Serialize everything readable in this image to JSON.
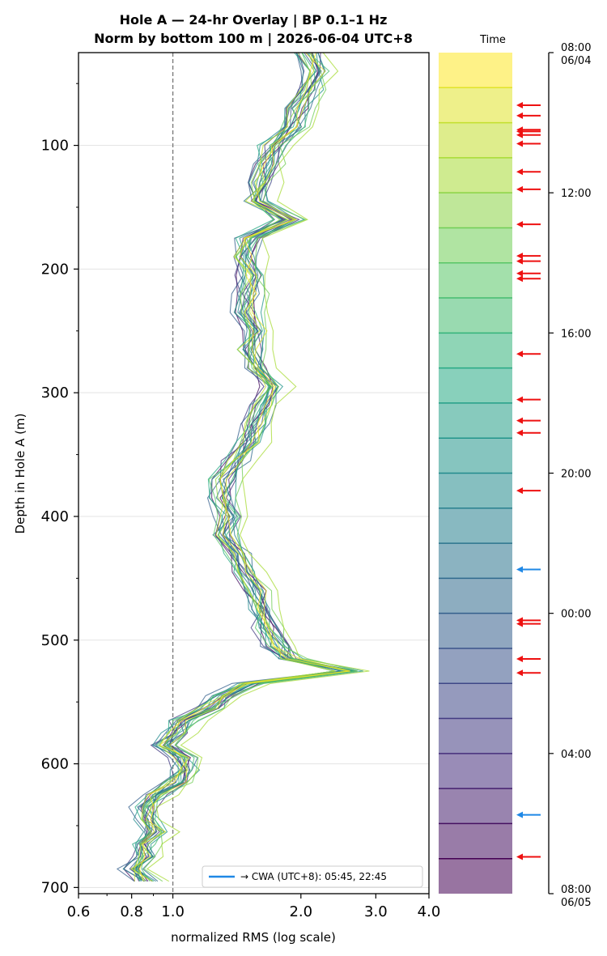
{
  "chart_data": {
    "type": "line",
    "title": "Hole A — 24-hr Overlay  |  BP 0.1–1 Hz",
    "subtitle": "Norm by bottom 100 m  |  2026-06-04 UTC+8",
    "xlabel": "normalized RMS  (log scale)",
    "ylabel": "Depth in Hole A (m)",
    "x_scale": "log",
    "xlim": [
      0.6,
      4.0
    ],
    "ylim": [
      705,
      25
    ],
    "x_ticks": [
      "0.6",
      "0.8",
      "1.0",
      "2.0",
      "3.0",
      "4.0"
    ],
    "y_ticks": [
      "100",
      "200",
      "300",
      "400",
      "500",
      "600",
      "700"
    ],
    "reference_line_x": 1.0,
    "grid": "horizontal",
    "legend": {
      "label": "→ CWA (UTC+8): 05:45, 22:45",
      "color": "#1f88e6",
      "placement": "bottom-right"
    },
    "colorbar": {
      "title": "Time",
      "top_label": "08:00",
      "top_sublabel": "06/04",
      "bottom_label": "08:00",
      "bottom_sublabel": "06/05",
      "tick_labels": [
        "12:00",
        "16:00",
        "20:00",
        "00:00",
        "04:00"
      ],
      "bands": 24,
      "colormap": "viridis",
      "red_arrow_hours": [
        1.5,
        1.8,
        2.2,
        2.25,
        2.35,
        2.6,
        3.4,
        3.9,
        4.9,
        5.8,
        5.95,
        6.3,
        6.45,
        8.6,
        9.9,
        10.5,
        10.85,
        12.5,
        16.2,
        16.3,
        17.3,
        17.7,
        22.95
      ],
      "blue_arrow_hours": [
        14.75,
        21.75
      ]
    },
    "depth_profile_m": [
      25,
      40,
      55,
      70,
      85,
      100,
      115,
      130,
      145,
      160,
      175,
      190,
      205,
      220,
      235,
      250,
      265,
      280,
      295,
      310,
      325,
      340,
      355,
      370,
      385,
      400,
      415,
      430,
      445,
      460,
      475,
      490,
      505,
      515,
      525,
      535,
      545,
      555,
      565,
      575,
      585,
      595,
      605,
      615,
      625,
      635,
      645,
      655,
      665,
      675,
      685,
      695
    ],
    "mean_profile": [
      2.05,
      2.15,
      2.05,
      1.95,
      1.9,
      1.7,
      1.65,
      1.6,
      1.55,
      1.85,
      1.5,
      1.45,
      1.5,
      1.5,
      1.48,
      1.55,
      1.5,
      1.55,
      1.7,
      1.6,
      1.55,
      1.5,
      1.4,
      1.3,
      1.3,
      1.35,
      1.3,
      1.4,
      1.45,
      1.55,
      1.6,
      1.65,
      1.75,
      1.85,
      2.55,
      1.5,
      1.3,
      1.2,
      1.05,
      1.0,
      0.95,
      1.05,
      1.05,
      1.0,
      0.9,
      0.85,
      0.85,
      0.9,
      0.85,
      0.85,
      0.8,
      0.85
    ],
    "series_count": 24,
    "series_offsets": [
      0.03,
      -0.02,
      0.01,
      0.04,
      -0.03,
      0.02,
      0.0,
      -0.04,
      0.05,
      -0.01,
      0.03,
      -0.02,
      0.06,
      0.01,
      -0.03,
      0.02,
      0.04,
      -0.02,
      0.08,
      0.0,
      0.12,
      -0.01,
      0.03,
      0.02
    ],
    "series_jitter_seeds": [
      3,
      7,
      11,
      13,
      17,
      19,
      23,
      29,
      31,
      37,
      41,
      43,
      47,
      53,
      59,
      61,
      67,
      71,
      73,
      79,
      83,
      89,
      97,
      101
    ]
  }
}
